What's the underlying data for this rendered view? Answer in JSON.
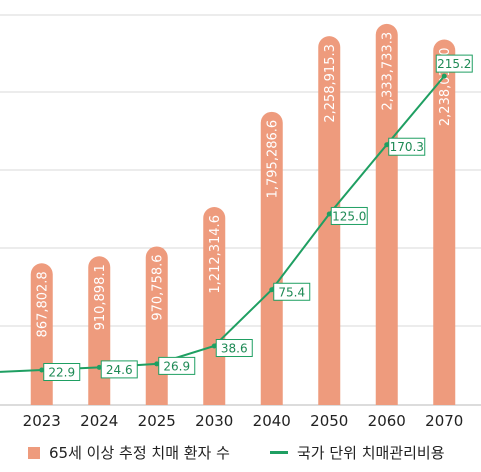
{
  "chart_data": {
    "type": "bar",
    "categories": [
      "2023",
      "2024",
      "2025",
      "2030",
      "2040",
      "2050",
      "2060",
      "2070"
    ],
    "series": [
      {
        "name": "65세 이상 추정 치매 환자 수",
        "kind": "bar",
        "values": [
          867802.8,
          910898.1,
          970758.6,
          1212314.6,
          1795286.6,
          2258915.3,
          2333733.3,
          2238013.0
        ],
        "labels": [
          "867,802.8",
          "910,898.1",
          "970,758.6",
          "1,212,314.6",
          "1,795,286.6",
          "2,258,915.3",
          "2,333,733.3",
          "2,238,013.0"
        ],
        "ylim": [
          0,
          2480000
        ]
      },
      {
        "name": "국가 단위 치매관리비용",
        "kind": "line",
        "values": [
          22.9,
          24.6,
          26.9,
          38.6,
          75.4,
          125.0,
          170.3,
          215.2
        ],
        "labels": [
          "22.9",
          "24.6",
          "26.9",
          "38.6",
          "75.4",
          "125.0",
          "170.3",
          "215.2"
        ],
        "ylim": [
          0,
          265
        ]
      }
    ],
    "grid": true,
    "legend_position": "bottom",
    "colors": {
      "bar": "#EE9B7D",
      "line": "#1F9F62",
      "grid": "#D9D9D9",
      "axis": "#C8C8C8",
      "bar_label": "#FFFFFF",
      "line_label": "#1E8A55",
      "label_box_stroke": "#1F9F62",
      "label_box_fill": "#FFFFFF",
      "text": "#222222"
    }
  }
}
